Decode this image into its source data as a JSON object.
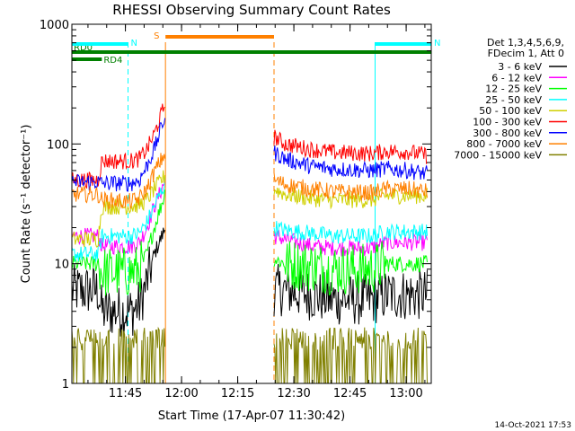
{
  "chart_data": {
    "type": "line",
    "title": "RHESSI Observing Summary Count Rates",
    "xlabel": "Start Time (17-Apr-07 11:30:42)",
    "ylabel": "Count Rate (s⁻¹ detector⁻¹)",
    "yscale": "log",
    "ylim": [
      1,
      1000
    ],
    "xlim_min_after_start": [
      0,
      96
    ],
    "x_ticks": [
      {
        "label": "11:45",
        "t": 14.3
      },
      {
        "label": "12:00",
        "t": 29.3
      },
      {
        "label": "12:15",
        "t": 44.3
      },
      {
        "label": "12:30",
        "t": 59.3
      },
      {
        "label": "12:45",
        "t": 74.3
      },
      {
        "label": "13:00",
        "t": 89.3
      }
    ],
    "y_ticks": [
      {
        "label": "1",
        "v": 1
      },
      {
        "label": "10",
        "v": 10
      },
      {
        "label": "100",
        "v": 100
      },
      {
        "label": "1000",
        "v": 1000
      }
    ],
    "legend_header": [
      "Det 1,3,4,5,6,9,",
      "FDecim 1, Att 0"
    ],
    "data_gap_min": [
      25.0,
      54.0
    ],
    "series": [
      {
        "name": "3 - 6 keV",
        "color": "#000000",
        "points": [
          [
            0,
            6
          ],
          [
            7,
            6
          ],
          [
            8,
            4
          ],
          [
            16,
            4
          ],
          [
            18,
            4.5
          ],
          [
            20,
            7
          ],
          [
            22,
            12
          ],
          [
            25,
            20
          ],
          [
            54,
            6
          ],
          [
            57,
            6
          ],
          [
            64,
            5.5
          ],
          [
            70,
            5
          ],
          [
            80,
            5
          ],
          [
            84,
            5.5
          ],
          [
            90,
            5.5
          ],
          [
            95,
            5.5
          ]
        ]
      },
      {
        "name": "6 - 12 keV",
        "color": "#ff00ff",
        "points": [
          [
            0,
            17
          ],
          [
            7,
            17
          ],
          [
            8,
            14
          ],
          [
            16,
            14
          ],
          [
            18,
            15
          ],
          [
            20,
            20
          ],
          [
            22,
            30
          ],
          [
            25,
            50
          ],
          [
            54,
            17
          ],
          [
            57,
            16
          ],
          [
            64,
            14
          ],
          [
            70,
            13.5
          ],
          [
            80,
            13.5
          ],
          [
            84,
            15
          ],
          [
            90,
            15
          ],
          [
            95,
            15
          ]
        ]
      },
      {
        "name": "12 - 25 keV",
        "color": "#00ff00",
        "points": [
          [
            0,
            10
          ],
          [
            7,
            10
          ],
          [
            8,
            8.5
          ],
          [
            16,
            8.5
          ],
          [
            18,
            9
          ],
          [
            20,
            12
          ],
          [
            22,
            20
          ],
          [
            25,
            40
          ],
          [
            54,
            11
          ],
          [
            57,
            10
          ],
          [
            64,
            9.5
          ],
          [
            70,
            9
          ],
          [
            80,
            9
          ],
          [
            84,
            10
          ],
          [
            90,
            10
          ],
          [
            95,
            10
          ]
        ]
      },
      {
        "name": "25 - 50 keV",
        "color": "#00ffff",
        "points": [
          [
            0,
            12
          ],
          [
            7,
            12
          ],
          [
            8,
            17
          ],
          [
            16,
            17
          ],
          [
            18,
            18
          ],
          [
            20,
            22
          ],
          [
            22,
            30
          ],
          [
            25,
            48
          ],
          [
            54,
            20
          ],
          [
            57,
            19
          ],
          [
            64,
            18
          ],
          [
            70,
            17
          ],
          [
            80,
            17
          ],
          [
            84,
            18.5
          ],
          [
            90,
            18.5
          ],
          [
            95,
            18.5
          ]
        ]
      },
      {
        "name": "50 - 100 keV",
        "color": "#d0d000",
        "points": [
          [
            0,
            16
          ],
          [
            7,
            16
          ],
          [
            8,
            30
          ],
          [
            16,
            30
          ],
          [
            18,
            31
          ],
          [
            20,
            34
          ],
          [
            22,
            42
          ],
          [
            25,
            55
          ],
          [
            54,
            42
          ],
          [
            57,
            38
          ],
          [
            64,
            35
          ],
          [
            70,
            34
          ],
          [
            80,
            34
          ],
          [
            84,
            37
          ],
          [
            90,
            37
          ],
          [
            95,
            37
          ]
        ]
      },
      {
        "name": "100 - 300 keV",
        "color": "#ff0000",
        "points": [
          [
            0,
            50
          ],
          [
            7,
            50
          ],
          [
            8,
            72
          ],
          [
            16,
            72
          ],
          [
            18,
            75
          ],
          [
            20,
            90
          ],
          [
            22,
            120
          ],
          [
            25,
            220
          ],
          [
            54,
            115
          ],
          [
            57,
            100
          ],
          [
            64,
            90
          ],
          [
            70,
            85
          ],
          [
            80,
            83
          ],
          [
            84,
            87
          ],
          [
            90,
            86
          ],
          [
            95,
            80
          ]
        ]
      },
      {
        "name": "300 - 800 keV",
        "color": "#0000ff",
        "points": [
          [
            0,
            48
          ],
          [
            7,
            48
          ],
          [
            8,
            47
          ],
          [
            16,
            47
          ],
          [
            18,
            50
          ],
          [
            20,
            65
          ],
          [
            22,
            90
          ],
          [
            25,
            175
          ],
          [
            54,
            85
          ],
          [
            57,
            75
          ],
          [
            64,
            65
          ],
          [
            70,
            62
          ],
          [
            80,
            60
          ],
          [
            84,
            62
          ],
          [
            90,
            60
          ],
          [
            95,
            56
          ]
        ]
      },
      {
        "name": "800 - 7000 keV",
        "color": "#ff8000",
        "points": [
          [
            0,
            38
          ],
          [
            7,
            38
          ],
          [
            8,
            34
          ],
          [
            16,
            33
          ],
          [
            18,
            35
          ],
          [
            20,
            42
          ],
          [
            22,
            58
          ],
          [
            25,
            85
          ],
          [
            54,
            50
          ],
          [
            57,
            46
          ],
          [
            64,
            42
          ],
          [
            70,
            40
          ],
          [
            80,
            39
          ],
          [
            84,
            42
          ],
          [
            90,
            42
          ],
          [
            95,
            40
          ]
        ]
      },
      {
        "name": "7000 - 15000 keV",
        "color": "#808000",
        "points": [
          [
            0,
            2.1
          ],
          [
            25,
            2.1
          ],
          [
            54,
            2.1
          ],
          [
            95,
            2.1
          ]
        ]
      }
    ],
    "bars": [
      {
        "label": "RD0",
        "color": "#008000",
        "t0": 0,
        "t1": 96,
        "level": 1
      },
      {
        "label": "RD4",
        "color": "#008000",
        "t0": 0,
        "t1": 8,
        "level": 2
      },
      {
        "label": "N",
        "color": "#00ffff",
        "t0": 0,
        "t1": 15,
        "level": 0
      },
      {
        "label": "N",
        "color": "#00ffff",
        "t0": 81,
        "t1": 96,
        "level": 0
      },
      {
        "label": "S",
        "color": "#ff8000",
        "t0": 25,
        "t1": 54,
        "level": -1
      }
    ],
    "vlines": [
      {
        "t": 0,
        "color": "#00ffff",
        "dashed": false
      },
      {
        "t": 15,
        "color": "#00ffff",
        "dashed": true
      },
      {
        "t": 25,
        "color": "#ff8000",
        "dashed": false
      },
      {
        "t": 54,
        "color": "#ff8000",
        "dashed": true
      },
      {
        "t": 81,
        "color": "#00ffff",
        "dashed": false
      },
      {
        "t": 96,
        "color": "#00ffff",
        "dashed": true
      }
    ],
    "timestamp": "14-Oct-2021 17:53"
  }
}
